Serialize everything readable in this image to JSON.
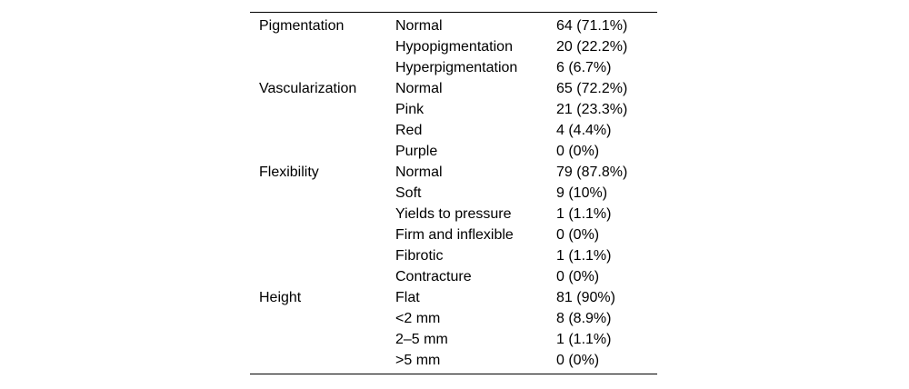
{
  "colors": {
    "background": "#ffffff",
    "text": "#000000",
    "rule": "#000000"
  },
  "table": {
    "rows": [
      {
        "category": "Pigmentation",
        "label": "Normal",
        "value": "64 (71.1%)"
      },
      {
        "category": "",
        "label": "Hypopigmentation",
        "value": "20 (22.2%)"
      },
      {
        "category": "",
        "label": "Hyperpigmentation",
        "value": "6 (6.7%)"
      },
      {
        "category": "Vascularization",
        "label": "Normal",
        "value": "65 (72.2%)"
      },
      {
        "category": "",
        "label": "Pink",
        "value": "21 (23.3%)"
      },
      {
        "category": "",
        "label": "Red",
        "value": "4 (4.4%)"
      },
      {
        "category": "",
        "label": "Purple",
        "value": "0 (0%)"
      },
      {
        "category": "Flexibility",
        "label": "Normal",
        "value": "79 (87.8%)"
      },
      {
        "category": "",
        "label": "Soft",
        "value": "9 (10%)"
      },
      {
        "category": "",
        "label": "Yields to pressure",
        "value": "1 (1.1%)"
      },
      {
        "category": "",
        "label": "Firm and inflexible",
        "value": "0 (0%)"
      },
      {
        "category": "",
        "label": "Fibrotic",
        "value": "1 (1.1%)"
      },
      {
        "category": "",
        "label": "Contracture",
        "value": "0 (0%)"
      },
      {
        "category": "Height",
        "label": "Flat",
        "value": "81 (90%)"
      },
      {
        "category": "",
        "label": "<2 mm",
        "value": "8 (8.9%)"
      },
      {
        "category": "",
        "label": "2–5 mm",
        "value": "1 (1.1%)"
      },
      {
        "category": "",
        "label": ">5 mm",
        "value": "0 (0%)"
      }
    ]
  }
}
